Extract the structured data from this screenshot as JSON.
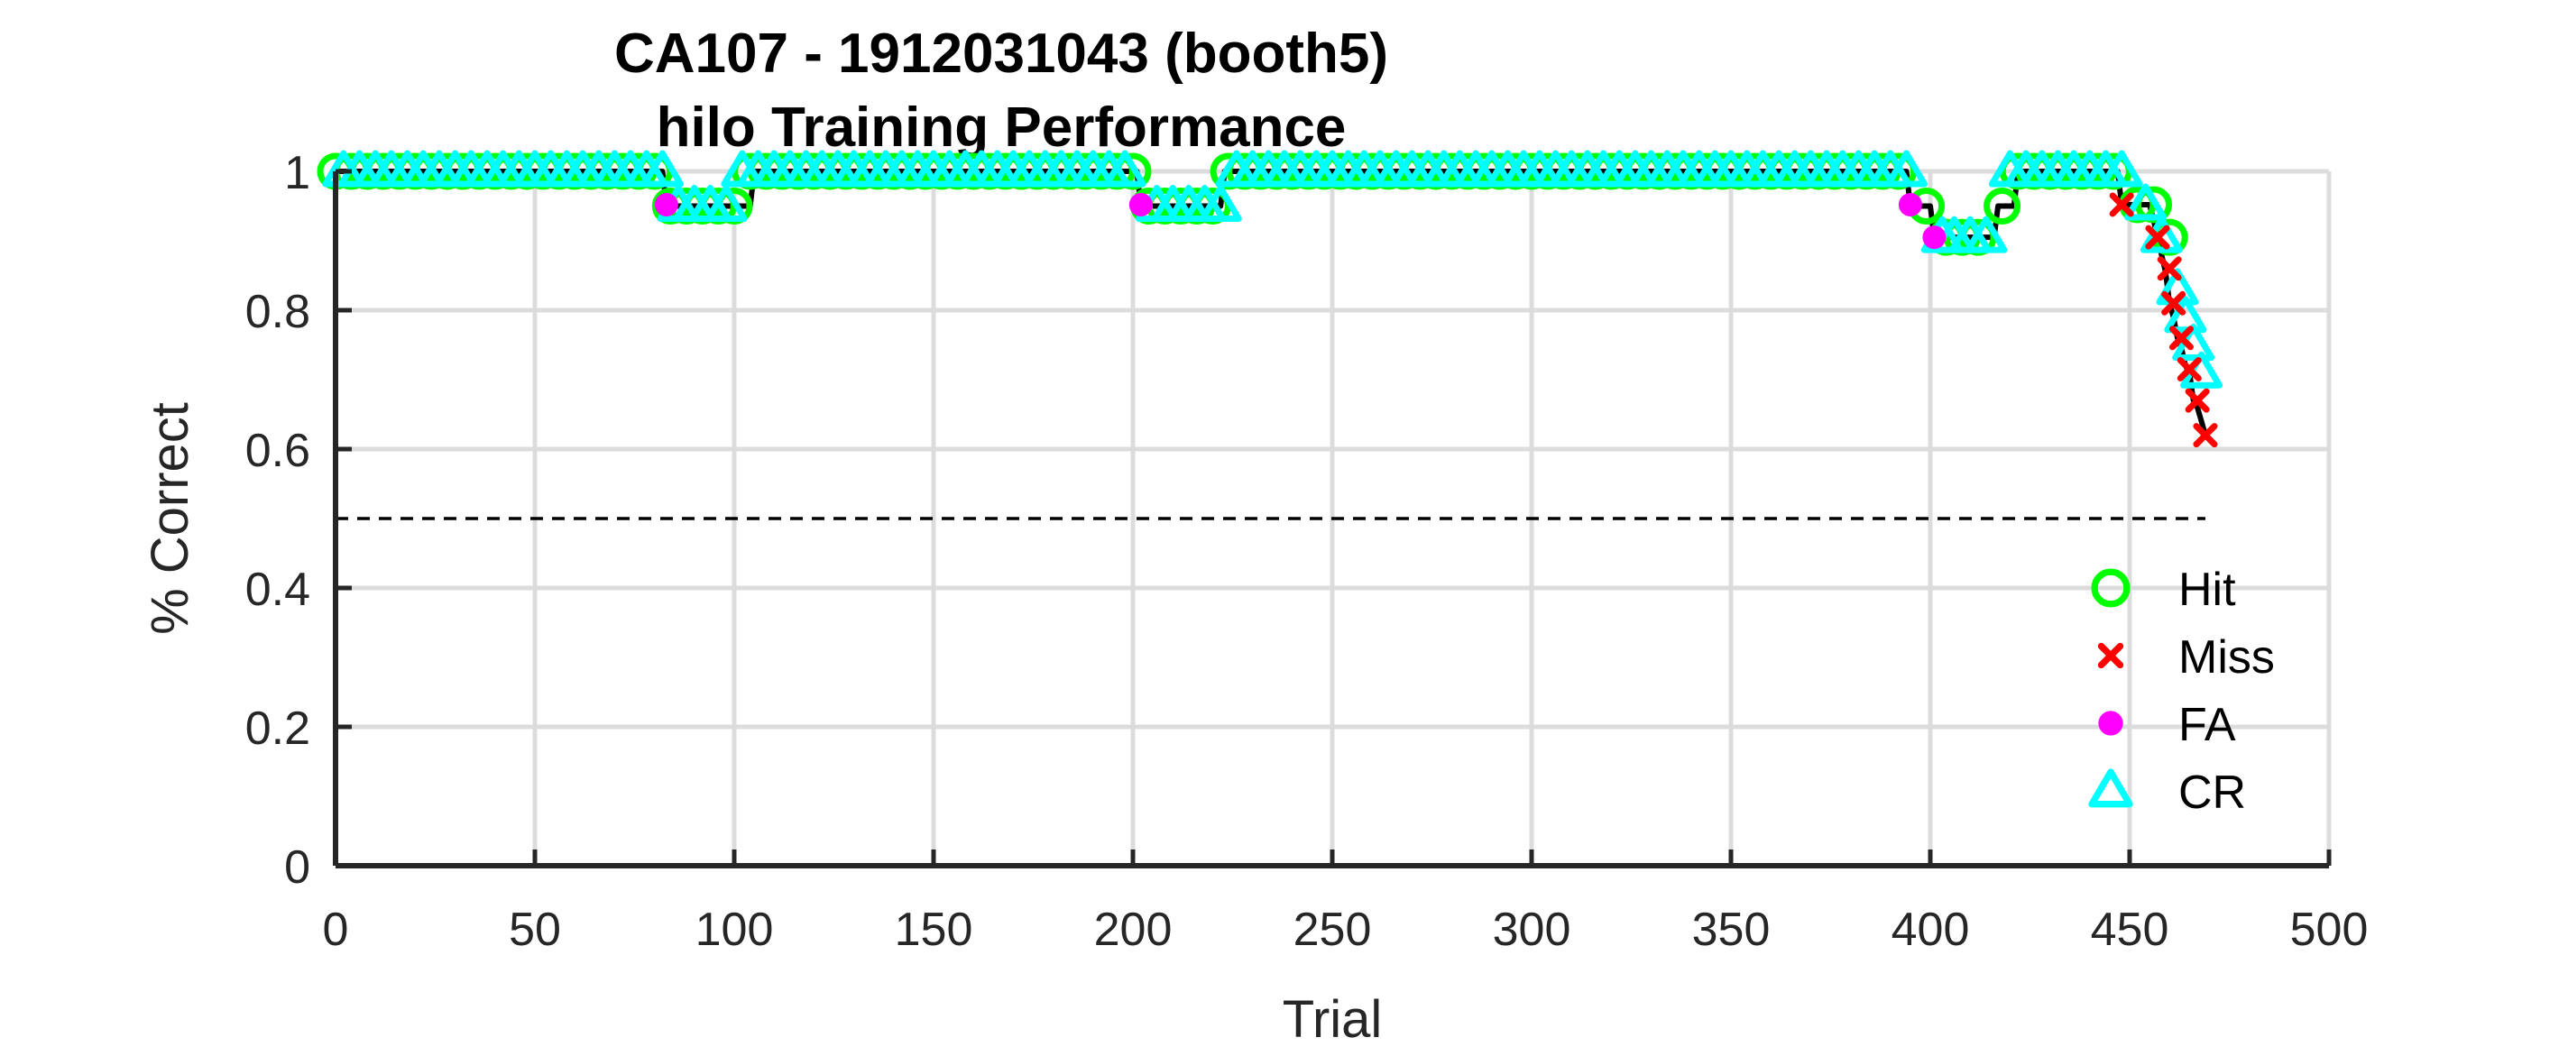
{
  "chart_data": {
    "type": "scatter",
    "title": "CA107 - 1912031043 (booth5)",
    "subtitle": "hilo Training Performance",
    "xlabel": "Trial",
    "ylabel": "% Correct",
    "xlim": [
      0,
      500
    ],
    "ylim": [
      0,
      1
    ],
    "x_ticks": [
      0,
      50,
      100,
      150,
      200,
      250,
      300,
      350,
      400,
      450,
      500
    ],
    "y_ticks": [
      0,
      0.2,
      0.4,
      0.6,
      0.8,
      1
    ],
    "x_tick_labels": [
      "0",
      "50",
      "100",
      "150",
      "200",
      "250",
      "300",
      "350",
      "400",
      "450",
      "500"
    ],
    "y_tick_labels": [
      "0",
      "0.2",
      "0.4",
      "0.6",
      "0.8",
      "1"
    ],
    "grid": true,
    "legend_position": "bottom-right",
    "reference_line": {
      "y": 0.5,
      "style": "dashed",
      "x_range": [
        0,
        469
      ]
    },
    "performance_curve": {
      "x": [
        0,
        82,
        83,
        104,
        105,
        201,
        202,
        222,
        223,
        394,
        395,
        400,
        401,
        416,
        417,
        421,
        422,
        447,
        448,
        455,
        456,
        457,
        458,
        459,
        460,
        461,
        462,
        463,
        464,
        465,
        466,
        467,
        468,
        469
      ],
      "y": [
        1,
        1,
        0.95,
        0.95,
        1,
        1,
        0.95,
        0.95,
        1,
        1,
        0.95,
        0.95,
        0.905,
        0.905,
        0.95,
        0.95,
        1,
        1,
        0.952,
        0.952,
        0.93,
        0.905,
        0.88,
        0.855,
        0.81,
        0.79,
        0.76,
        0.745,
        0.72,
        0.71,
        0.67,
        0.66,
        0.64,
        0.62
      ]
    },
    "series": [
      {
        "name": "Hit",
        "color": "#00ff00",
        "marker": "circle",
        "x": [
          0,
          4,
          8,
          12,
          16,
          20,
          24,
          28,
          32,
          36,
          40,
          44,
          48,
          52,
          56,
          60,
          64,
          68,
          72,
          76,
          80,
          84,
          88,
          92,
          96,
          100,
          104,
          108,
          112,
          116,
          120,
          124,
          128,
          132,
          136,
          140,
          144,
          148,
          152,
          156,
          160,
          164,
          168,
          172,
          176,
          180,
          184,
          188,
          192,
          196,
          200,
          204,
          208,
          212,
          216,
          220,
          224,
          228,
          232,
          236,
          240,
          244,
          248,
          252,
          256,
          260,
          264,
          268,
          272,
          276,
          280,
          284,
          288,
          292,
          296,
          300,
          304,
          308,
          312,
          316,
          320,
          324,
          328,
          332,
          336,
          340,
          344,
          348,
          352,
          356,
          360,
          364,
          368,
          372,
          376,
          380,
          384,
          388,
          392,
          399,
          404,
          408,
          412,
          418,
          422,
          426,
          430,
          434,
          438,
          442,
          446,
          452,
          456,
          460
        ],
        "y": [
          1,
          1,
          1,
          1,
          1,
          1,
          1,
          1,
          1,
          1,
          1,
          1,
          1,
          1,
          1,
          1,
          1,
          1,
          1,
          1,
          1,
          0.95,
          0.95,
          0.95,
          0.95,
          0.95,
          1,
          1,
          1,
          1,
          1,
          1,
          1,
          1,
          1,
          1,
          1,
          1,
          1,
          1,
          1,
          1,
          1,
          1,
          1,
          1,
          1,
          1,
          1,
          1,
          1,
          0.95,
          0.95,
          0.95,
          0.95,
          0.95,
          1,
          1,
          1,
          1,
          1,
          1,
          1,
          1,
          1,
          1,
          1,
          1,
          1,
          1,
          1,
          1,
          1,
          1,
          1,
          1,
          1,
          1,
          1,
          1,
          1,
          1,
          1,
          1,
          1,
          1,
          1,
          1,
          1,
          1,
          1,
          1,
          1,
          1,
          1,
          1,
          1,
          1,
          1,
          0.95,
          0.905,
          0.905,
          0.905,
          0.95,
          1,
          1,
          1,
          1,
          1,
          1,
          1,
          0.952,
          0.952,
          0.905
        ]
      },
      {
        "name": "Miss",
        "color": "#ff0000",
        "marker": "x",
        "x": [
          448,
          457,
          460,
          461,
          463,
          465,
          467,
          469
        ],
        "y": [
          0.952,
          0.905,
          0.86,
          0.81,
          0.76,
          0.715,
          0.67,
          0.62
        ]
      },
      {
        "name": "FA",
        "color": "#ff00ff",
        "marker": "filled-circle",
        "x": [
          83,
          202,
          395,
          401
        ],
        "y": [
          0.952,
          0.952,
          0.952,
          0.905
        ]
      },
      {
        "name": "CR",
        "color": "#00ffff",
        "marker": "triangle",
        "x": [
          2,
          6,
          10,
          14,
          18,
          22,
          26,
          30,
          34,
          38,
          42,
          46,
          50,
          54,
          58,
          62,
          66,
          70,
          74,
          78,
          82,
          86,
          90,
          94,
          98,
          102,
          106,
          110,
          114,
          118,
          122,
          126,
          130,
          134,
          138,
          142,
          146,
          150,
          154,
          158,
          162,
          166,
          170,
          174,
          178,
          182,
          186,
          190,
          194,
          198,
          206,
          210,
          214,
          218,
          222,
          226,
          230,
          234,
          238,
          242,
          246,
          250,
          254,
          258,
          262,
          266,
          270,
          274,
          278,
          282,
          286,
          290,
          294,
          298,
          302,
          306,
          310,
          314,
          318,
          322,
          326,
          330,
          334,
          338,
          342,
          346,
          350,
          354,
          358,
          362,
          366,
          370,
          374,
          378,
          382,
          386,
          390,
          394,
          403,
          406,
          410,
          414,
          420,
          424,
          428,
          432,
          436,
          440,
          444,
          448,
          454,
          458,
          462,
          464,
          466,
          468
        ],
        "y": [
          1,
          1,
          1,
          1,
          1,
          1,
          1,
          1,
          1,
          1,
          1,
          1,
          1,
          1,
          1,
          1,
          1,
          1,
          1,
          1,
          1,
          0.95,
          0.95,
          0.95,
          0.95,
          1,
          1,
          1,
          1,
          1,
          1,
          1,
          1,
          1,
          1,
          1,
          1,
          1,
          1,
          1,
          1,
          1,
          1,
          1,
          1,
          1,
          1,
          1,
          1,
          1,
          0.95,
          0.95,
          0.95,
          0.95,
          0.95,
          1,
          1,
          1,
          1,
          1,
          1,
          1,
          1,
          1,
          1,
          1,
          1,
          1,
          1,
          1,
          1,
          1,
          1,
          1,
          1,
          1,
          1,
          1,
          1,
          1,
          1,
          1,
          1,
          1,
          1,
          1,
          1,
          1,
          1,
          1,
          1,
          1,
          1,
          1,
          1,
          1,
          1,
          1,
          0.905,
          0.905,
          0.905,
          0.905,
          1,
          1,
          1,
          1,
          1,
          1,
          1,
          1,
          0.952,
          0.905,
          0.83,
          0.79,
          0.75,
          0.71
        ]
      }
    ]
  }
}
